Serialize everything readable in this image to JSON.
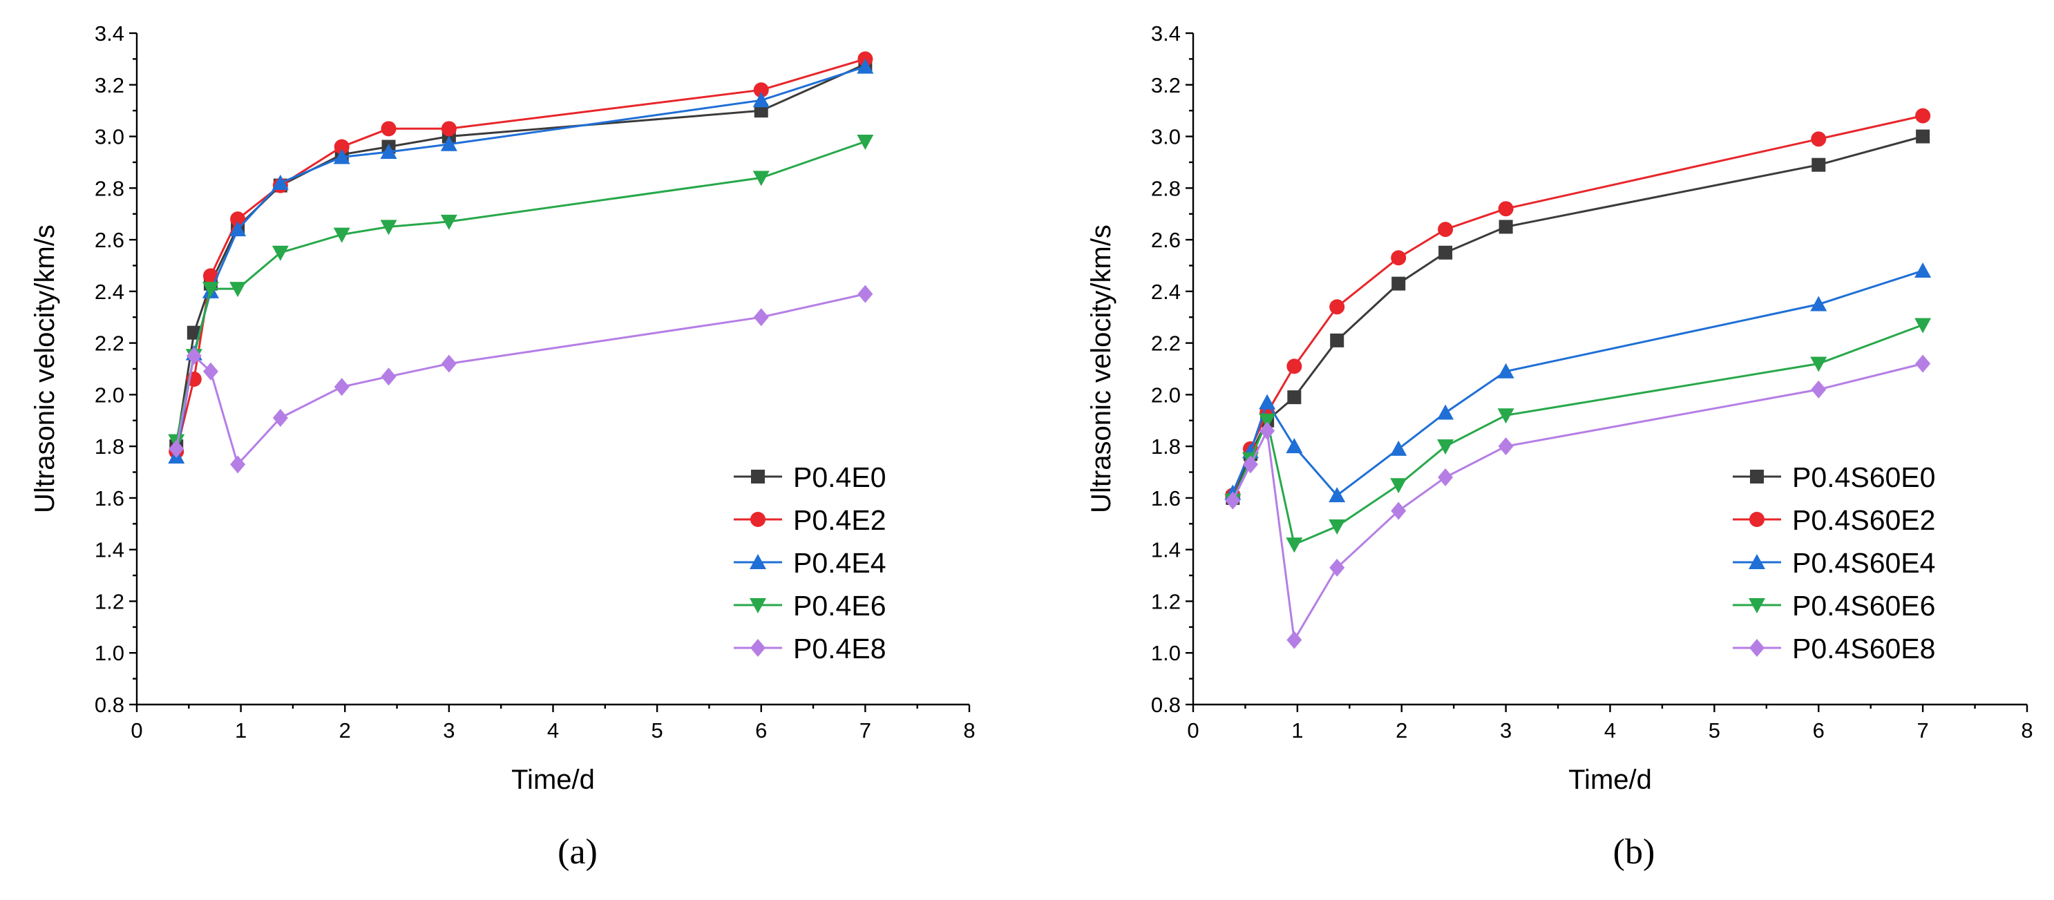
{
  "chart_data": [
    {
      "type": "line",
      "panel": "(a)",
      "title": "",
      "xlabel": "Time/d",
      "ylabel": "Ultrasonic velocity/km/s",
      "xlim": [
        0,
        8
      ],
      "ylim": [
        0.8,
        3.4
      ],
      "xticks": [
        0,
        1,
        2,
        3,
        4,
        5,
        6,
        7,
        8
      ],
      "yticks": [
        0.8,
        1.0,
        1.2,
        1.4,
        1.6,
        1.8,
        2.0,
        2.2,
        2.4,
        2.6,
        2.8,
        3.0,
        3.2,
        3.4
      ],
      "legend_position": "bottom-right",
      "series": [
        {
          "name": "P0.4E0",
          "color": "#3b3b3b",
          "marker": "square",
          "x": [
            0.38,
            0.55,
            0.71,
            0.97,
            1.38,
            1.97,
            2.42,
            3.0,
            6.0,
            7.0
          ],
          "y": [
            1.8,
            2.24,
            2.43,
            2.65,
            2.81,
            2.93,
            2.96,
            3.0,
            3.1,
            3.28
          ]
        },
        {
          "name": "P0.4E2",
          "color": "#e8262b",
          "marker": "circle",
          "x": [
            0.38,
            0.55,
            0.71,
            0.97,
            1.38,
            1.97,
            2.42,
            3.0,
            6.0,
            7.0
          ],
          "y": [
            1.78,
            2.06,
            2.46,
            2.68,
            2.81,
            2.96,
            3.03,
            3.03,
            3.18,
            3.3
          ]
        },
        {
          "name": "P0.4E4",
          "color": "#1f6fd6",
          "marker": "triangle-up",
          "x": [
            0.38,
            0.55,
            0.71,
            0.97,
            1.38,
            1.97,
            2.42,
            3.0,
            6.0,
            7.0
          ],
          "y": [
            1.76,
            2.16,
            2.4,
            2.64,
            2.82,
            2.92,
            2.94,
            2.97,
            3.14,
            3.27
          ]
        },
        {
          "name": "P0.4E6",
          "color": "#27a84a",
          "marker": "triangle-down",
          "x": [
            0.38,
            0.55,
            0.71,
            0.97,
            1.38,
            1.97,
            2.42,
            3.0,
            6.0,
            7.0
          ],
          "y": [
            1.82,
            2.15,
            2.41,
            2.41,
            2.55,
            2.62,
            2.65,
            2.67,
            2.84,
            2.98
          ]
        },
        {
          "name": "P0.4E8",
          "color": "#b57ee5",
          "marker": "diamond",
          "x": [
            0.38,
            0.55,
            0.71,
            0.97,
            1.38,
            1.97,
            2.42,
            3.0,
            6.0,
            7.0
          ],
          "y": [
            1.79,
            2.15,
            2.09,
            1.73,
            1.91,
            2.03,
            2.07,
            2.12,
            2.3,
            2.39
          ]
        }
      ]
    },
    {
      "type": "line",
      "panel": "(b)",
      "title": "",
      "xlabel": "Time/d",
      "ylabel": "Ultrasonic velocity/km/s",
      "xlim": [
        0,
        8
      ],
      "ylim": [
        0.8,
        3.4
      ],
      "xticks": [
        0,
        1,
        2,
        3,
        4,
        5,
        6,
        7,
        8
      ],
      "yticks": [
        0.8,
        1.0,
        1.2,
        1.4,
        1.6,
        1.8,
        2.0,
        2.2,
        2.4,
        2.6,
        2.8,
        3.0,
        3.2,
        3.4
      ],
      "legend_position": "bottom-right",
      "series": [
        {
          "name": "P0.4S60E0",
          "color": "#3b3b3b",
          "marker": "square",
          "x": [
            0.38,
            0.55,
            0.71,
            0.97,
            1.38,
            1.97,
            2.42,
            3.0,
            6.0,
            7.0
          ],
          "y": [
            1.6,
            1.77,
            1.9,
            1.99,
            2.21,
            2.43,
            2.55,
            2.65,
            2.89,
            3.0
          ]
        },
        {
          "name": "P0.4S60E2",
          "color": "#e8262b",
          "marker": "circle",
          "x": [
            0.38,
            0.55,
            0.71,
            0.97,
            1.38,
            1.97,
            2.42,
            3.0,
            6.0,
            7.0
          ],
          "y": [
            1.61,
            1.79,
            1.93,
            2.11,
            2.34,
            2.53,
            2.64,
            2.72,
            2.99,
            3.08
          ]
        },
        {
          "name": "P0.4S60E4",
          "color": "#1f6fd6",
          "marker": "triangle-up",
          "x": [
            0.38,
            0.55,
            0.71,
            0.97,
            1.38,
            1.97,
            2.42,
            3.0,
            6.0,
            7.0
          ],
          "y": [
            1.62,
            1.78,
            1.97,
            1.8,
            1.61,
            1.79,
            1.93,
            2.09,
            2.35,
            2.48
          ]
        },
        {
          "name": "P0.4S60E6",
          "color": "#27a84a",
          "marker": "triangle-down",
          "x": [
            0.38,
            0.55,
            0.71,
            0.97,
            1.38,
            1.97,
            2.42,
            3.0,
            6.0,
            7.0
          ],
          "y": [
            1.59,
            1.75,
            1.9,
            1.42,
            1.49,
            1.65,
            1.8,
            1.92,
            2.12,
            2.27
          ]
        },
        {
          "name": "P0.4S60E8",
          "color": "#b57ee5",
          "marker": "diamond",
          "x": [
            0.38,
            0.55,
            0.71,
            0.97,
            1.38,
            1.97,
            2.42,
            3.0,
            6.0,
            7.0
          ],
          "y": [
            1.59,
            1.73,
            1.86,
            1.05,
            1.33,
            1.55,
            1.68,
            1.8,
            2.02,
            2.12
          ]
        }
      ]
    }
  ]
}
